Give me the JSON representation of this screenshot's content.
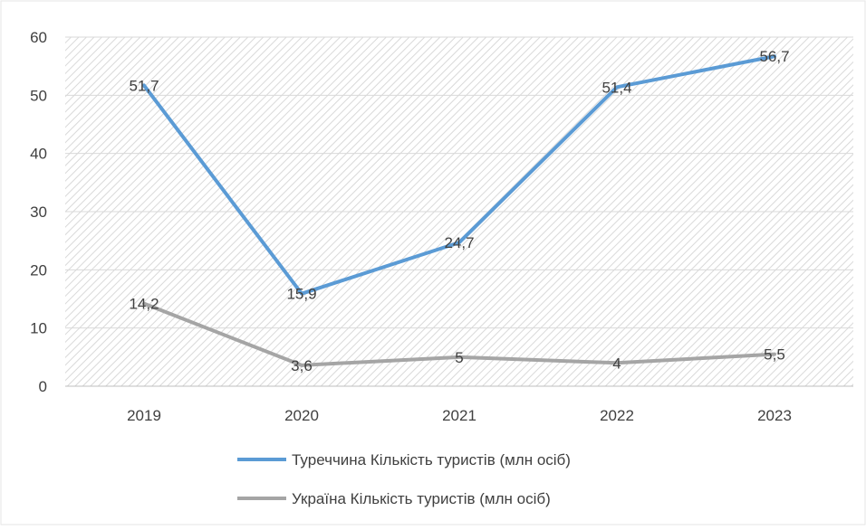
{
  "chart_data": {
    "type": "line",
    "categories": [
      "2019",
      "2020",
      "2021",
      "2022",
      "2023"
    ],
    "ylim": [
      0,
      60
    ],
    "y_ticks": [
      0,
      10,
      20,
      30,
      40,
      50,
      60
    ],
    "grid": true,
    "legend_position": "bottom",
    "series": [
      {
        "name": "Туреччина  Кількість туристів (млн осіб)",
        "values": [
          51.7,
          15.9,
          24.7,
          51.4,
          56.7
        ],
        "labels": [
          "51,7",
          "15,9",
          "24,7",
          "51,4",
          "56,7"
        ],
        "color": "#5b9bd5"
      },
      {
        "name": "Україна  Кількість туристів (млн осіб)",
        "values": [
          14.2,
          3.6,
          5,
          4,
          5.5
        ],
        "labels": [
          "14,2",
          "3,6",
          "5",
          "4",
          "5,5"
        ],
        "color": "#a5a5a5"
      }
    ]
  }
}
